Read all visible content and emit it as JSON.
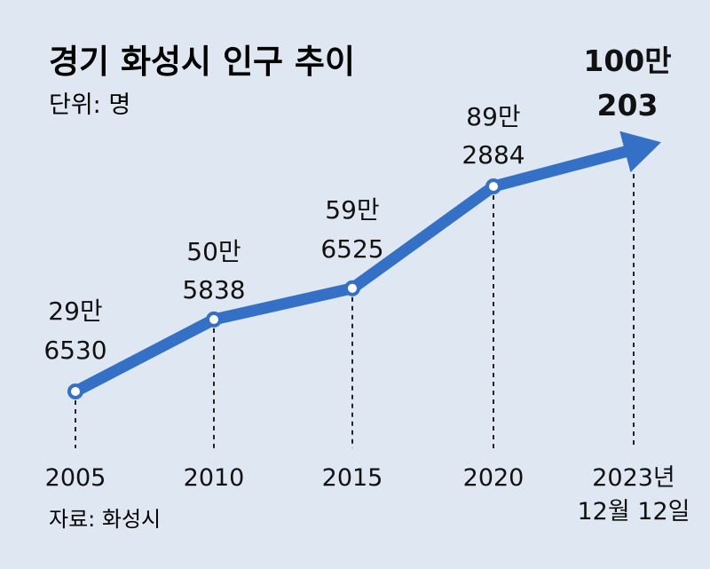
{
  "chart_data": {
    "type": "line",
    "title": "경기 화성시 인구 추이",
    "unit_label": "단위: 명",
    "source": "자료: 화성시",
    "x": [
      "2005",
      "2010",
      "2015",
      "2020",
      "2023년 12월 12일"
    ],
    "x_tick_lines": [
      [
        "2005"
      ],
      [
        "2010"
      ],
      [
        "2015"
      ],
      [
        "2020"
      ],
      [
        "2023년",
        "12월 12일"
      ]
    ],
    "values": [
      296530,
      505838,
      596525,
      892884,
      1000203
    ],
    "value_labels": [
      [
        "29만",
        "6530"
      ],
      [
        "50만",
        "5838"
      ],
      [
        "59만",
        "6525"
      ],
      [
        "89만",
        "2884"
      ],
      [
        "100만",
        "203"
      ]
    ],
    "colors": {
      "line": "#3470c6",
      "background": "#dfe8f2",
      "marker_fill": "#ffffff",
      "text": "#111111"
    }
  }
}
